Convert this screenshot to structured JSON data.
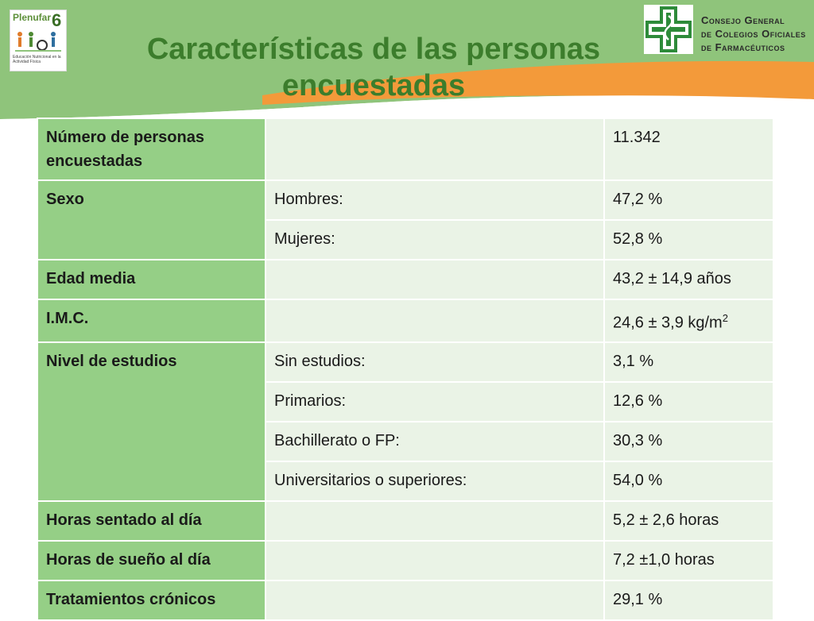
{
  "header": {
    "title": "Características de las personas encuestadas",
    "logo_left": {
      "brand": "Plenufar",
      "number": "6",
      "caption": "Educación Nutricional en la Actividad Física"
    },
    "logo_right": {
      "org_line1": "Consejo General",
      "org_line2": "de Colegios Oficiales",
      "org_line3": "de Farmacéuticos"
    }
  },
  "colors": {
    "label_bg": "#95cf86",
    "cell_bg": "#eaf3e6",
    "title": "#3c7d2c",
    "orange": "#f39a3a",
    "green": "#8fc47b"
  },
  "table": {
    "rows": [
      {
        "label": "Número de personas encuestadas",
        "sub": "",
        "value": "11.342"
      },
      {
        "label": "Sexo",
        "sub": "Hombres:",
        "value": "47,2 %"
      },
      {
        "label": "",
        "sub": "Mujeres:",
        "value": "52,8 %"
      },
      {
        "label": "Edad media",
        "sub": "",
        "value": "43,2 ± 14,9 años"
      },
      {
        "label": "I.M.C.",
        "sub": "",
        "value": "24,6 ± 3,9 kg/m",
        "value_sup": "2"
      },
      {
        "label": "Nivel de estudios",
        "sub": "Sin estudios:",
        "value": "3,1 %"
      },
      {
        "label": "",
        "sub": "Primarios:",
        "value": "12,6 %"
      },
      {
        "label": "",
        "sub": "Bachillerato o FP:",
        "value": "30,3 %"
      },
      {
        "label": "",
        "sub": "Universitarios o superiores:",
        "value": "54,0 %"
      },
      {
        "label": "Horas sentado al día",
        "sub": "",
        "value": "5,2 ± 2,6 horas"
      },
      {
        "label": "Horas de sueño al día",
        "sub": "",
        "value": "7,2 ±1,0 horas"
      },
      {
        "label": "Tratamientos crónicos",
        "sub": "",
        "value": "29,1 %"
      }
    ]
  }
}
